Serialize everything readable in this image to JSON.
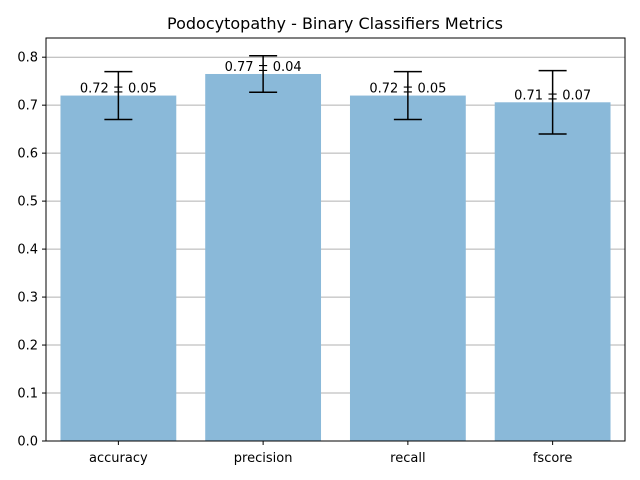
{
  "chart_data": {
    "type": "bar",
    "title": "Podocytopathy - Binary Classifiers Metrics",
    "xlabel": "",
    "ylabel": "",
    "categories": [
      "accuracy",
      "precision",
      "recall",
      "fscore"
    ],
    "values": [
      0.72,
      0.765,
      0.72,
      0.706
    ],
    "errors": [
      0.05,
      0.038,
      0.05,
      0.066
    ],
    "data_labels": [
      "0.72 ± 0.05",
      "0.77 ± 0.04",
      "0.72 ± 0.05",
      "0.71 ± 0.07"
    ],
    "ylim": [
      0,
      0.84
    ],
    "yticks": [
      0.0,
      0.1,
      0.2,
      0.3,
      0.4,
      0.5,
      0.6,
      0.7,
      0.8
    ],
    "ytick_labels": [
      "0.0",
      "0.1",
      "0.2",
      "0.3",
      "0.4",
      "0.5",
      "0.6",
      "0.7",
      "0.8"
    ],
    "grid": "y",
    "bar_color": "#8ab9d9"
  }
}
